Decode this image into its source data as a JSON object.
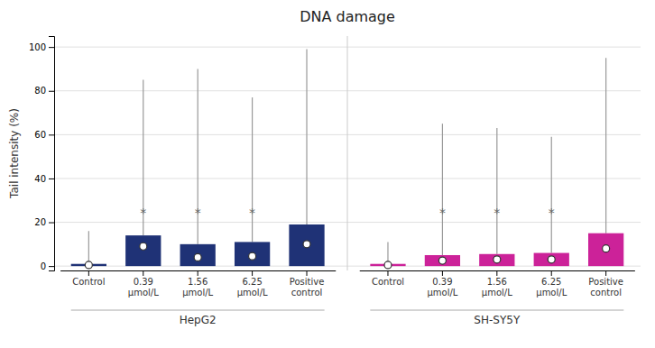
{
  "chart_data": {
    "type": "box",
    "title": "DNA damage",
    "ylabel": "Tail intensity (%)",
    "ylim": [
      -2,
      105
    ],
    "yticks": [
      0,
      20,
      40,
      60,
      80,
      100
    ],
    "grid": true,
    "categories": [
      "Control",
      "0.39\nμmol/L",
      "1.56\nμmol/L",
      "6.25\nμmol/L",
      "Positive\ncontrol"
    ],
    "series": [
      {
        "name": "HepG2",
        "color": "#1f3276",
        "box_bottom": [
          0,
          0,
          0,
          0,
          0
        ],
        "box_top": [
          1,
          14,
          10,
          11,
          19
        ],
        "median": [
          0.5,
          9,
          4,
          4.5,
          10
        ],
        "whisker_top": [
          16,
          85,
          90,
          77,
          99
        ],
        "annotations": [
          {
            "text": "*",
            "category": 1,
            "y": 24
          },
          {
            "text": "*",
            "category": 2,
            "y": 24
          },
          {
            "text": "*",
            "category": 3,
            "y": 24
          }
        ]
      },
      {
        "name": "SH-SY5Y",
        "color": "#cc2299",
        "box_bottom": [
          0,
          0,
          0,
          0,
          0
        ],
        "box_top": [
          1,
          5,
          5.5,
          6,
          15
        ],
        "median": [
          0.5,
          2.5,
          3,
          3,
          8
        ],
        "whisker_top": [
          11,
          65,
          63,
          59,
          95
        ],
        "annotations": [
          {
            "text": "*",
            "category": 1,
            "y": 24
          },
          {
            "text": "*",
            "category": 2,
            "y": 24
          },
          {
            "text": "*",
            "category": 3,
            "y": 24
          }
        ]
      }
    ]
  }
}
